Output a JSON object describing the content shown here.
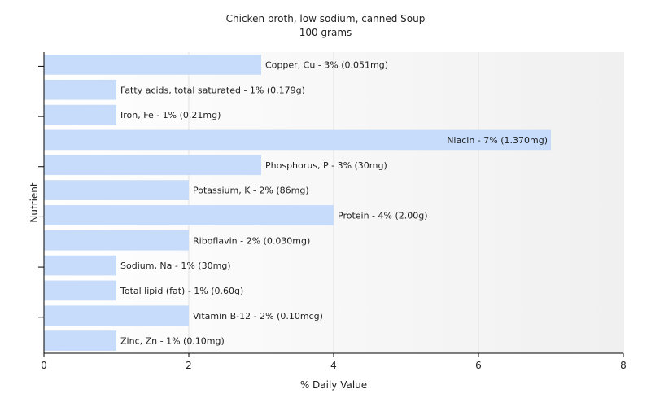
{
  "chart_data": {
    "type": "bar",
    "orientation": "horizontal",
    "title": "Chicken broth, low sodium, canned Soup",
    "subtitle": "100 grams",
    "xlabel": "% Daily Value",
    "ylabel": "Nutrient",
    "xlim": [
      0,
      8
    ],
    "xticks": [
      0,
      2,
      4,
      6,
      8
    ],
    "grid": true,
    "bar_color": "#c6dcfa",
    "categories": [
      "Copper, Cu",
      "Fatty acids, total saturated",
      "Iron, Fe",
      "Niacin",
      "Phosphorus, P",
      "Potassium, K",
      "Protein",
      "Riboflavin",
      "Sodium, Na",
      "Total lipid (fat)",
      "Vitamin B-12",
      "Zinc, Zn"
    ],
    "values": [
      3,
      1,
      1,
      7,
      3,
      2,
      4,
      2,
      1,
      1,
      2,
      1
    ],
    "labels": [
      "Copper, Cu - 3% (0.051mg)",
      "Fatty acids, total saturated - 1% (0.179g)",
      "Iron, Fe - 1% (0.21mg)",
      "Niacin - 7% (1.370mg)",
      "Phosphorus, P - 3% (30mg)",
      "Potassium, K - 2% (86mg)",
      "Protein - 4% (2.00g)",
      "Riboflavin - 2% (0.030mg)",
      "Sodium, Na - 1% (30mg)",
      "Total lipid (fat) - 1% (0.60g)",
      "Vitamin B-12 - 2% (0.10mcg)",
      "Zinc, Zn - 1% (0.10mg)"
    ]
  }
}
